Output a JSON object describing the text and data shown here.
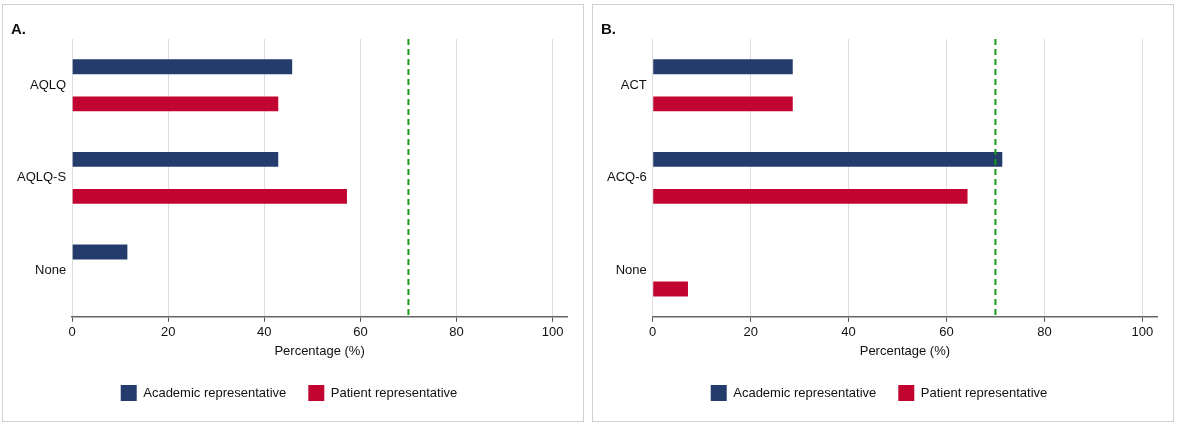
{
  "chart_data": [
    {
      "type": "bar",
      "orientation": "horizontal",
      "title": "A.",
      "xlabel": "Percentage (%)",
      "categories": [
        "AQLQ",
        "AQLQ-S",
        "None"
      ],
      "series": [
        {
          "name": "Academic representative",
          "color": "#243c6c",
          "values": [
            45.8,
            42.9,
            11.5
          ]
        },
        {
          "name": "Patient representative",
          "color": "#c20430",
          "values": [
            42.9,
            57.2,
            0
          ]
        }
      ],
      "xlim": [
        0,
        103
      ],
      "xticks": [
        0,
        20,
        40,
        60,
        80,
        100
      ],
      "grid": "x",
      "legend": "bottom",
      "ref_lines": [
        {
          "axis": "x",
          "value": 70,
          "color": "#1a9a1a",
          "line_style": "dashed"
        }
      ]
    },
    {
      "type": "bar",
      "orientation": "horizontal",
      "title": "B.",
      "xlabel": "Percentage (%)",
      "categories": [
        "ACT",
        "ACQ-6",
        "None"
      ],
      "series": [
        {
          "name": "Academic representative",
          "color": "#243c6c",
          "values": [
            28.6,
            71.4,
            0
          ]
        },
        {
          "name": "Patient representative",
          "color": "#c20430",
          "values": [
            28.6,
            64.3,
            7.2
          ]
        }
      ],
      "xlim": [
        0,
        103
      ],
      "xticks": [
        0,
        20,
        40,
        60,
        80,
        100
      ],
      "grid": "x",
      "legend": "bottom",
      "ref_lines": [
        {
          "axis": "x",
          "value": 70,
          "color": "#1a9a1a",
          "line_style": "dashed"
        }
      ]
    }
  ]
}
